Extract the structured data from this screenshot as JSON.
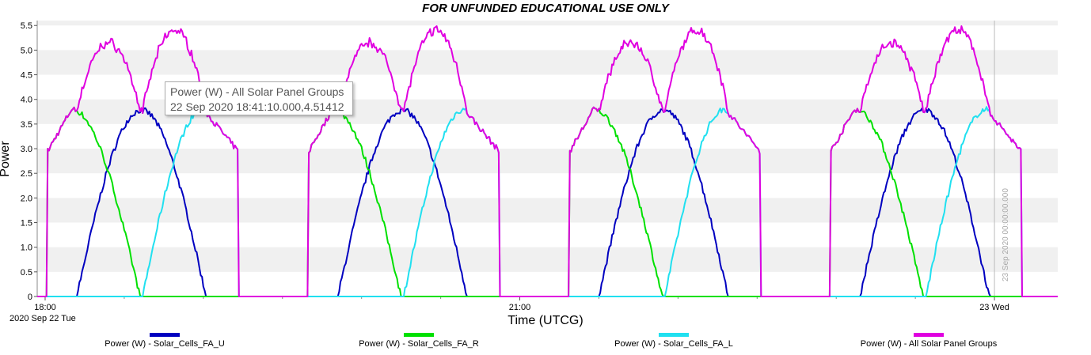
{
  "title": "FOR UNFUNDED EDUCATIONAL USE ONLY",
  "tooltip": {
    "line1": "Power (W) - All Solar Panel Groups",
    "line2": "22 Sep 2020 18:41:10.000,4.51412"
  },
  "marker_label": "23 Sep 2020 00:00:00.000",
  "chart_data": {
    "type": "line",
    "title": "FOR UNFUNDED EDUCATIONAL USE ONLY",
    "xlabel": "Time (UTCG)",
    "ylabel": "Power",
    "ylim": [
      0,
      5.6
    ],
    "y_ticks": [
      "0",
      "0.5",
      "1.0",
      "1.5",
      "2.0",
      "2.5",
      "3.0",
      "3.5",
      "4.0",
      "4.5",
      "5.0",
      "5.5"
    ],
    "x_ticks": [
      "18:00",
      "21:00",
      "23 Wed"
    ],
    "x_date_label": "2020 Sep 22 Tue",
    "grid": true,
    "legend_position": "bottom",
    "x_range_minutes_after_1800": [
      -3,
      384
    ],
    "orbit_period_minutes": 99,
    "orbits": [
      {
        "sunlit_start": 1,
        "sunlit_end": 73,
        "all_peak1_time": 24,
        "all_peak1": 5.55,
        "all_peak2_time": 47,
        "all_peak2": 5.25,
        "U_start": 12,
        "U_peak_time": 36,
        "U_peak": 3.78,
        "U_end": 61,
        "R_peak": 3.8,
        "R_end": 36,
        "L_start": 37,
        "L_peak_time": 60,
        "L_peak": 3.8
      }
    ],
    "series": [
      {
        "name": "Power (W) - Solar_Cells_FA_U",
        "color": "#0000c0"
      },
      {
        "name": "Power (W) - Solar_Cells_FA_R",
        "color": "#00e000"
      },
      {
        "name": "Power (W) - Solar_Cells_FA_L",
        "color": "#20e0f0"
      },
      {
        "name": "Power (W) - All Solar Panel Groups",
        "color": "#e000e0"
      }
    ],
    "marker_line_time": 360
  }
}
